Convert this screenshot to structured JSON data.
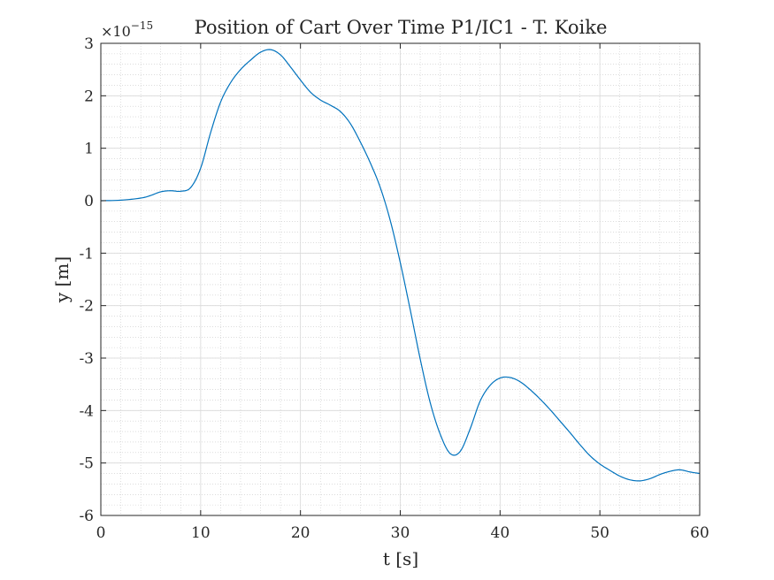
{
  "chart_data": {
    "type": "line",
    "title": "Position of Cart Over Time P1/IC1 - T. Koike",
    "xlabel": "t [s]",
    "ylabel": "y [m]",
    "xlim": [
      0,
      60
    ],
    "ylim": [
      -6,
      3
    ],
    "y_exponent_base": "×10",
    "y_exponent_power": "−15",
    "x_ticks": [
      0,
      10,
      20,
      30,
      40,
      50,
      60
    ],
    "y_ticks": [
      -6,
      -5,
      -4,
      -3,
      -2,
      -1,
      0,
      1,
      2,
      3
    ],
    "x_tick_labels": [
      "0",
      "10",
      "20",
      "30",
      "40",
      "50",
      "60"
    ],
    "y_tick_labels": [
      "-6",
      "-5",
      "-4",
      "-3",
      "-2",
      "-1",
      "0",
      "1",
      "2",
      "3"
    ],
    "grid": "on",
    "minor_grid": "on",
    "legend": "none",
    "colors": {
      "line": "#0072bd",
      "grid": "#d9d9d9",
      "minor_grid": "#c8c8c8",
      "axes": "#262626"
    },
    "series": [
      {
        "x": [
          0,
          2,
          4,
          5,
          6,
          7,
          8,
          9,
          10,
          11,
          12,
          13,
          14,
          15,
          16,
          17,
          18,
          19,
          20,
          21,
          22,
          23,
          24,
          25,
          26,
          27,
          28,
          29,
          30,
          31,
          32,
          33,
          34,
          35,
          36,
          37,
          38,
          39,
          40,
          41,
          42,
          43,
          44,
          45,
          46,
          47,
          48,
          49,
          50,
          51,
          52,
          53,
          54,
          55,
          56,
          57,
          58,
          59,
          60
        ],
        "values": [
          0,
          0.01,
          0.05,
          0.1,
          0.17,
          0.19,
          0.18,
          0.25,
          0.62,
          1.3,
          1.88,
          2.25,
          2.5,
          2.68,
          2.83,
          2.88,
          2.78,
          2.55,
          2.3,
          2.07,
          1.92,
          1.82,
          1.7,
          1.47,
          1.12,
          0.72,
          0.25,
          -0.38,
          -1.18,
          -2.08,
          -3.02,
          -3.85,
          -4.45,
          -4.82,
          -4.78,
          -4.35,
          -3.82,
          -3.52,
          -3.38,
          -3.37,
          -3.45,
          -3.6,
          -3.78,
          -3.98,
          -4.2,
          -4.42,
          -4.65,
          -4.86,
          -5.02,
          -5.14,
          -5.25,
          -5.32,
          -5.34,
          -5.3,
          -5.22,
          -5.16,
          -5.13,
          -5.17,
          -5.2
        ]
      }
    ]
  }
}
